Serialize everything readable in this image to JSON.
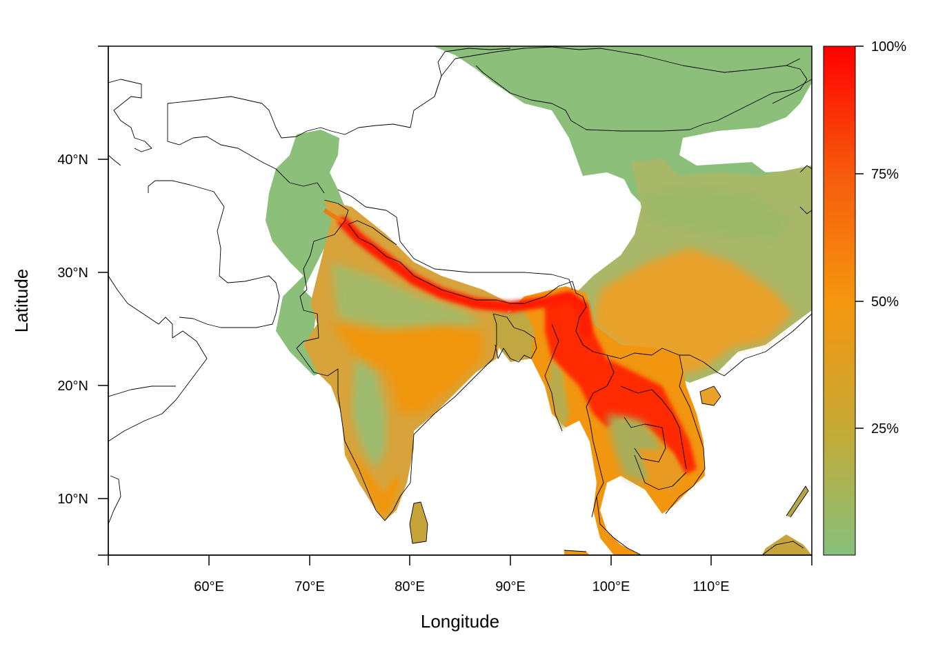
{
  "axes": {
    "xlabel": "Longitude",
    "ylabel": "Latitude",
    "x_ticks": [
      "60°E",
      "70°E",
      "80°E",
      "90°E",
      "100°E",
      "110°E"
    ],
    "y_ticks": [
      "10°N",
      "20°N",
      "30°N",
      "40°N"
    ]
  },
  "legend": {
    "labels": [
      "25%",
      "50%",
      "75%",
      "100%"
    ],
    "gradient_colors": [
      "#86c07c",
      "#c6a935",
      "#f5960e",
      "#f75a0c",
      "#ff0000"
    ]
  },
  "colors": {
    "low": "#8cbf7a",
    "mid": "#f5950f",
    "high": "#ff1a00"
  }
}
